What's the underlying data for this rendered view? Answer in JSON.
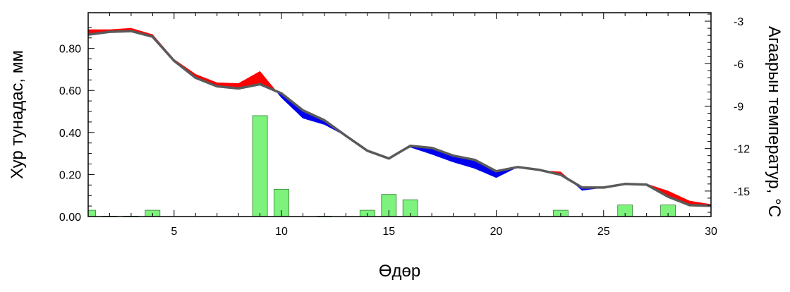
{
  "chart_data": {
    "type": "bar+line",
    "xlabel": "Өдөр",
    "ylabel_left": "Хур тунадас, мм",
    "ylabel_right": "Агаарын температур, °C",
    "xlim": [
      1,
      30
    ],
    "ylim_left": [
      0,
      0.97
    ],
    "ylim_right": [
      -16.8,
      -2.4
    ],
    "x_ticks": [
      5,
      10,
      15,
      20,
      25,
      30
    ],
    "y_left_ticks": [
      "0.00",
      "0.20",
      "0.40",
      "0.60",
      "0.80"
    ],
    "y_right_ticks": [
      "-3",
      "-6",
      "-9",
      "-12",
      "-15"
    ],
    "precipitation": {
      "days": [
        1,
        2,
        3,
        4,
        9,
        10,
        12,
        14,
        15,
        16,
        23,
        26,
        28
      ],
      "values": [
        0.03,
        0.002,
        0.002,
        0.03,
        0.48,
        0.13,
        0.002,
        0.03,
        0.105,
        0.08,
        0.03,
        0.055,
        0.055
      ]
    },
    "temperature": {
      "days": [
        1,
        2,
        3,
        4,
        5,
        6,
        7,
        8,
        9,
        10,
        11,
        12,
        13,
        14,
        15,
        16,
        17,
        18,
        19,
        20,
        21,
        22,
        23,
        24,
        25,
        26,
        27,
        28,
        29,
        30
      ],
      "reference": [
        -3.95,
        -3.75,
        -3.7,
        -4.1,
        -5.8,
        -7.0,
        -7.6,
        -7.75,
        -7.45,
        -8.1,
        -9.3,
        -10.0,
        -11.1,
        -12.15,
        -12.7,
        -11.8,
        -11.95,
        -12.5,
        -12.8,
        -13.6,
        -13.3,
        -13.5,
        -13.85,
        -14.75,
        -14.75,
        -14.5,
        -14.55,
        -15.4,
        -16.0,
        -16.05
      ],
      "actual": [
        -3.6,
        -3.6,
        -3.5,
        -3.95,
        -5.7,
        -6.75,
        -7.35,
        -7.4,
        -6.55,
        -8.4,
        -9.85,
        -10.3,
        -11.1,
        -12.1,
        -12.7,
        -11.9,
        -12.4,
        -12.95,
        -13.4,
        -14.05,
        -13.3,
        -13.55,
        -13.65,
        -14.95,
        -14.75,
        -14.5,
        -14.5,
        -15.0,
        -15.7,
        -15.95
      ]
    },
    "colors": {
      "bar_fill": "#7df27d",
      "bar_stroke": "#2f7f2f",
      "line": "#5a5a5a",
      "warmer": "#ff0000",
      "colder": "#0000ee"
    }
  }
}
